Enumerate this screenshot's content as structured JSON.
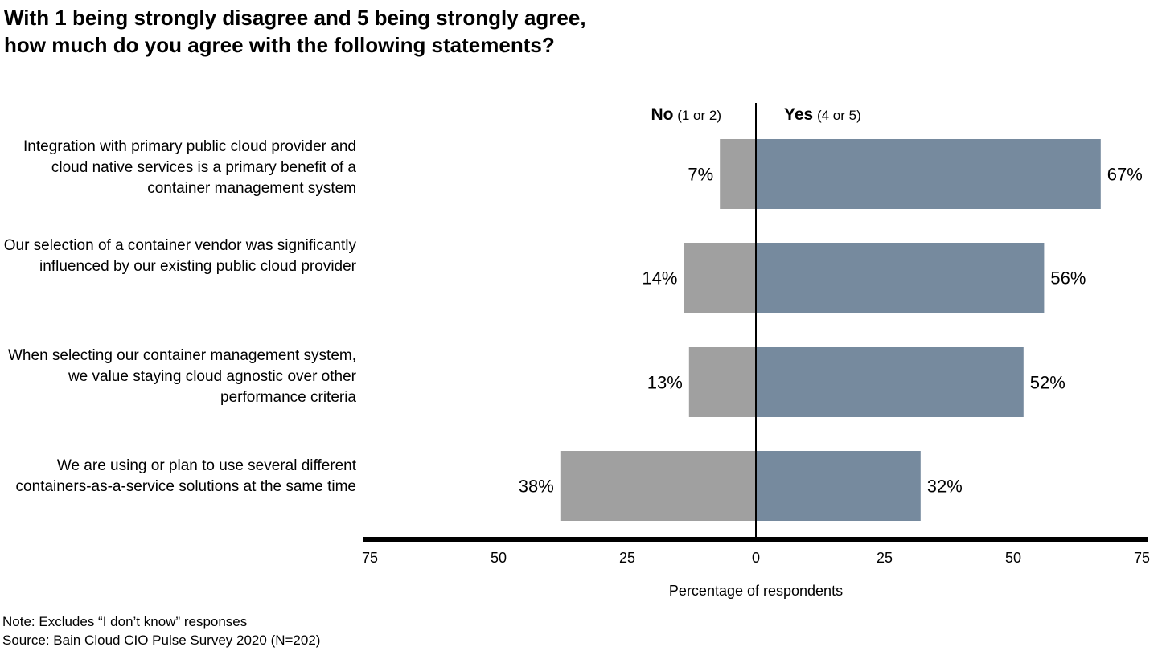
{
  "chart_data": {
    "type": "bar",
    "orientation": "horizontal-diverging",
    "title": "With 1 being strongly disagree and 5 being strongly agree,\nhow much do you agree with the following statements?",
    "categories": [
      "Integration with primary public cloud provider and cloud native services is a primary benefit of a container management system",
      "Our selection of a container vendor was significantly influenced by our existing public cloud provider",
      "When selecting our container management system, we value staying cloud agnostic over other performance criteria",
      "We are using or plan to use several different containers-as-a-service solutions at the same time"
    ],
    "series": [
      {
        "name": "No",
        "name_detail": "(1 or 2)",
        "values": [
          7,
          14,
          13,
          38
        ],
        "color": "#a0a0a0"
      },
      {
        "name": "Yes",
        "name_detail": "(4 or 5)",
        "values": [
          67,
          56,
          52,
          32
        ],
        "color": "#768a9e"
      }
    ],
    "value_labels": {
      "No": [
        "7%",
        "14%",
        "13%",
        "38%"
      ],
      "Yes": [
        "67%",
        "56%",
        "52%",
        "32%"
      ]
    },
    "xlabel": "Percentage of respondents",
    "xlim": [
      -75,
      75
    ],
    "xticks": [
      -75,
      -50,
      -25,
      0,
      25,
      50,
      75
    ],
    "xtick_labels": [
      "75",
      "50",
      "25",
      "0",
      "25",
      "50",
      "75"
    ],
    "grid": false,
    "legend": "top (column headers)"
  },
  "notes": {
    "note": "Note: Excludes “I don’t know” responses",
    "source": "Source: Bain Cloud CIO Pulse Survey 2020 (N=202)"
  }
}
